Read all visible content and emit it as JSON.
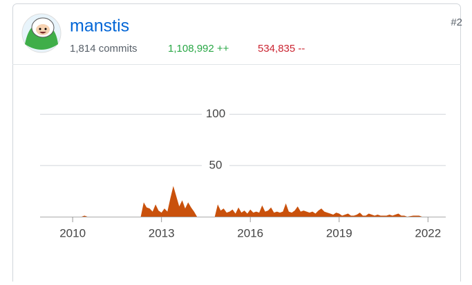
{
  "header": {
    "name": "manstis",
    "commits": "1,814 commits",
    "additions": "1,108,992 ++",
    "deletions": "534,835 --",
    "rank": "#2"
  },
  "chart_data": {
    "type": "area",
    "x": [
      2010.3,
      2010.4,
      2010.5,
      2012.3,
      2012.4,
      2012.5,
      2012.6,
      2012.7,
      2012.8,
      2012.9,
      2013.0,
      2013.1,
      2013.2,
      2013.3,
      2013.4,
      2013.5,
      2013.6,
      2013.7,
      2013.8,
      2013.9,
      2014.0,
      2014.1,
      2014.2,
      2014.8,
      2014.9,
      2015.0,
      2015.1,
      2015.2,
      2015.3,
      2015.4,
      2015.5,
      2015.6,
      2015.7,
      2015.8,
      2015.9,
      2016.0,
      2016.1,
      2016.2,
      2016.3,
      2016.4,
      2016.5,
      2016.6,
      2016.7,
      2016.8,
      2016.9,
      2017.0,
      2017.1,
      2017.2,
      2017.3,
      2017.4,
      2017.5,
      2017.6,
      2017.7,
      2017.8,
      2017.9,
      2018.0,
      2018.1,
      2018.2,
      2018.3,
      2018.4,
      2018.5,
      2018.6,
      2018.7,
      2018.8,
      2018.9,
      2019.0,
      2019.1,
      2019.2,
      2019.3,
      2019.4,
      2019.5,
      2019.6,
      2019.7,
      2019.8,
      2019.9,
      2020.0,
      2020.1,
      2020.2,
      2020.3,
      2020.4,
      2020.5,
      2020.6,
      2020.7,
      2020.8,
      2020.9,
      2021.0,
      2021.1,
      2021.2,
      2021.3,
      2021.5,
      2021.7,
      2021.8
    ],
    "values": [
      0,
      1,
      0,
      0,
      14,
      9,
      8,
      5,
      12,
      6,
      4,
      8,
      5,
      18,
      30,
      20,
      10,
      16,
      8,
      14,
      9,
      5,
      0,
      0,
      12,
      6,
      8,
      4,
      5,
      7,
      3,
      9,
      4,
      6,
      3,
      7,
      4,
      5,
      4,
      11,
      5,
      6,
      9,
      4,
      5,
      4,
      5,
      13,
      5,
      4,
      6,
      10,
      5,
      6,
      5,
      4,
      5,
      3,
      6,
      8,
      5,
      4,
      3,
      2,
      4,
      3,
      1,
      2,
      3,
      1,
      1,
      2,
      4,
      1,
      1,
      3,
      2,
      1,
      2,
      1,
      1,
      1,
      2,
      1,
      2,
      3,
      1,
      1,
      0,
      1,
      1,
      0
    ],
    "color": "#c9510c",
    "xlim": [
      2008.9,
      2022.6
    ],
    "ylim": [
      0,
      120
    ],
    "xticks": [
      2010,
      2013,
      2016,
      2019,
      2022
    ],
    "yticks": [
      50,
      100
    ],
    "grid": true
  }
}
